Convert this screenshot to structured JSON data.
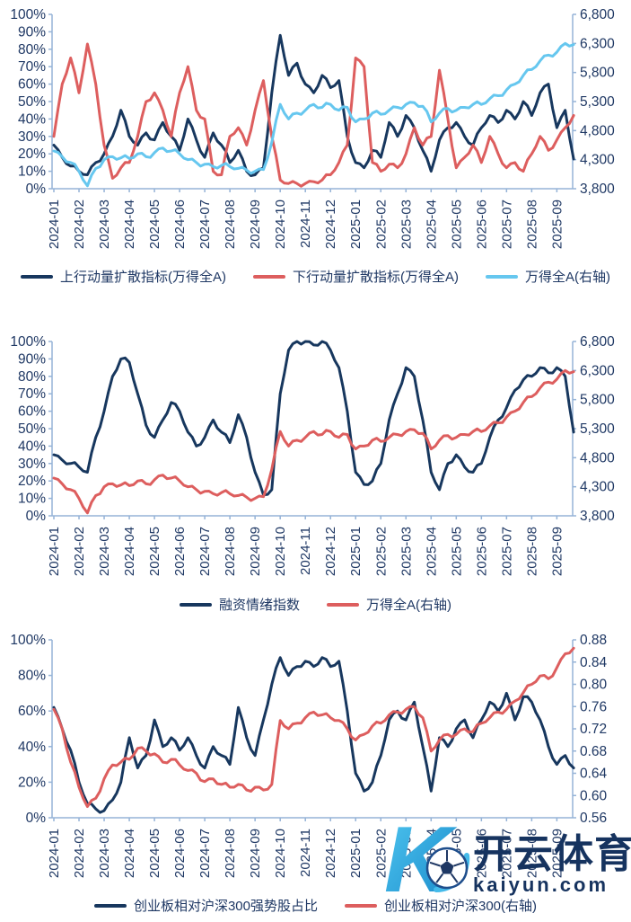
{
  "colors": {
    "navy_line": "#17375E",
    "red_line": "#DD5E5E",
    "sky_line": "#66C7EF",
    "axis_line": "#95B3D7",
    "axis_text": "#1F3864",
    "watermark_cyan": "#2FA8E0",
    "watermark_navy": "#16335F"
  },
  "watermark": {
    "logo": "kaiyun-k-soccer-logo",
    "brand_cn": "开云体育",
    "brand_url": "kaiyun.com"
  },
  "chart_data": [
    {
      "type": "line",
      "x_labels": [
        "2024-01",
        "2024-02",
        "2024-03",
        "2024-04",
        "2024-05",
        "2024-06",
        "2024-07",
        "2024-08",
        "2024-09",
        "2024-10",
        "2024-11",
        "2024-12",
        "2025-01",
        "2025-02",
        "2025-03",
        "2025-04",
        "2025-05",
        "2025-06",
        "2025-07",
        "2025-08",
        "2025-09"
      ],
      "x_label_rotation": -90,
      "grid": false,
      "legend_position": "bottom",
      "left_axis": {
        "min": 0,
        "max": 100,
        "ticks": [
          "100%",
          "90%",
          "80%",
          "70%",
          "60%",
          "50%",
          "40%",
          "30%",
          "20%",
          "10%",
          "0%"
        ]
      },
      "right_axis": {
        "min": 3800,
        "max": 6800,
        "ticks": [
          "6,800",
          "6,300",
          "5,800",
          "5,300",
          "4,800",
          "4,300",
          "3,800"
        ]
      },
      "series": [
        {
          "name": "上行动量扩散指标(万得全A)",
          "axis": "left",
          "color": "#17375E",
          "values": [
            25,
            18,
            13,
            10,
            8,
            15,
            20,
            30,
            45,
            30,
            25,
            32,
            28,
            38,
            30,
            22,
            40,
            28,
            18,
            32,
            25,
            15,
            22,
            10,
            8,
            12,
            55,
            88,
            65,
            72,
            60,
            55,
            65,
            58,
            62,
            30,
            15,
            12,
            22,
            18,
            38,
            30,
            42,
            35,
            22,
            10,
            28,
            35,
            38,
            30,
            25,
            35,
            42,
            38,
            45,
            40,
            50,
            42,
            55,
            60,
            35,
            45,
            17
          ]
        },
        {
          "name": "下行动量扩散指标(万得全A)",
          "axis": "left",
          "color": "#DD5E5E",
          "values": [
            30,
            60,
            75,
            55,
            83,
            60,
            25,
            6,
            12,
            15,
            30,
            50,
            55,
            45,
            30,
            55,
            70,
            45,
            40,
            10,
            8,
            30,
            35,
            25,
            45,
            62,
            30,
            5,
            3,
            3,
            3,
            4,
            5,
            8,
            15,
            25,
            75,
            70,
            15,
            10,
            14,
            12,
            20,
            35,
            25,
            30,
            68,
            40,
            12,
            18,
            25,
            15,
            30,
            20,
            12,
            15,
            10,
            20,
            30,
            22,
            28,
            35,
            42
          ]
        },
        {
          "name": "万得全A(右轴)",
          "axis": "right",
          "color": "#66C7EF",
          "values": [
            4450,
            4350,
            4250,
            4100,
            3850,
            4150,
            4300,
            4350,
            4330,
            4320,
            4400,
            4350,
            4420,
            4500,
            4450,
            4400,
            4300,
            4250,
            4220,
            4180,
            4200,
            4180,
            4150,
            4120,
            4100,
            4130,
            4600,
            5250,
            5000,
            5100,
            5150,
            5250,
            5200,
            5250,
            5150,
            5200,
            4950,
            5000,
            5100,
            5080,
            5150,
            5200,
            5250,
            5280,
            5220,
            4950,
            5100,
            5180,
            5150,
            5200,
            5250,
            5250,
            5350,
            5400,
            5500,
            5600,
            5750,
            5850,
            6000,
            6100,
            6150,
            6300,
            6280
          ]
        }
      ]
    },
    {
      "type": "line",
      "x_labels": [
        "2024-01",
        "2024-02",
        "2024-03",
        "2024-04",
        "2024-05",
        "2024-06",
        "2024-07",
        "2024-08",
        "2024-09",
        "2024-10",
        "2024-11",
        "2024-12",
        "2025-01",
        "2025-02",
        "2025-03",
        "2025-04",
        "2025-05",
        "2025-06",
        "2025-07",
        "2025-08",
        "2025-09"
      ],
      "x_label_rotation": -90,
      "grid": false,
      "legend_position": "bottom",
      "left_axis": {
        "min": 0,
        "max": 100,
        "ticks": [
          "100%",
          "90%",
          "80%",
          "70%",
          "60%",
          "50%",
          "40%",
          "30%",
          "20%",
          "10%",
          "0%"
        ]
      },
      "right_axis": {
        "min": 3800,
        "max": 6800,
        "ticks": [
          "6,800",
          "6,300",
          "5,800",
          "5,300",
          "4,800",
          "4,300",
          "3,800"
        ]
      },
      "series": [
        {
          "name": "融资情绪指数",
          "axis": "left",
          "color": "#17375E",
          "values": [
            35,
            32,
            30,
            28,
            25,
            45,
            60,
            80,
            90,
            88,
            70,
            52,
            45,
            55,
            65,
            60,
            48,
            40,
            45,
            55,
            48,
            42,
            58,
            45,
            25,
            12,
            15,
            70,
            95,
            100,
            100,
            98,
            100,
            95,
            85,
            60,
            25,
            18,
            20,
            30,
            55,
            70,
            85,
            80,
            55,
            25,
            15,
            30,
            35,
            28,
            25,
            30,
            45,
            55,
            62,
            72,
            78,
            80,
            85,
            82,
            85,
            80,
            48
          ]
        },
        {
          "name": "万得全A(右轴)",
          "axis": "right",
          "color": "#DD5E5E",
          "values": [
            4450,
            4350,
            4250,
            4100,
            3850,
            4150,
            4300,
            4350,
            4330,
            4320,
            4400,
            4350,
            4420,
            4500,
            4450,
            4400,
            4300,
            4250,
            4220,
            4180,
            4200,
            4180,
            4150,
            4120,
            4100,
            4130,
            4600,
            5250,
            5000,
            5100,
            5150,
            5250,
            5200,
            5250,
            5150,
            5200,
            4950,
            5000,
            5100,
            5080,
            5150,
            5200,
            5250,
            5280,
            5220,
            4950,
            5100,
            5180,
            5150,
            5200,
            5250,
            5250,
            5350,
            5400,
            5500,
            5600,
            5750,
            5850,
            6000,
            6100,
            6150,
            6300,
            6280
          ]
        }
      ]
    },
    {
      "type": "line",
      "x_labels": [
        "2024-01",
        "2024-02",
        "2024-03",
        "2024-04",
        "2024-05",
        "2024-06",
        "2024-07",
        "2024-08",
        "2024-09",
        "2024-10",
        "2024-11",
        "2024-12",
        "2025-01",
        "2025-02",
        "2025-03",
        "2025-04",
        "2025-05",
        "2025-06",
        "2025-07",
        "2025-08",
        "2025-09"
      ],
      "x_label_rotation": -90,
      "grid": false,
      "legend_position": "bottom",
      "left_axis": {
        "min": 0,
        "max": 100,
        "ticks": [
          "100%",
          "80%",
          "60%",
          "40%",
          "20%",
          "0%"
        ]
      },
      "right_axis": {
        "min": 0.56,
        "max": 0.88,
        "ticks": [
          "0.88",
          "0.84",
          "0.80",
          "0.76",
          "0.72",
          "0.68",
          "0.64",
          "0.60",
          "0.56"
        ]
      },
      "series": [
        {
          "name": "创业板相对沪深300强势股占比",
          "axis": "left",
          "color": "#17375E",
          "values": [
            62,
            50,
            38,
            20,
            8,
            5,
            4,
            10,
            20,
            45,
            28,
            35,
            55,
            40,
            45,
            38,
            45,
            35,
            28,
            40,
            35,
            30,
            62,
            45,
            35,
            55,
            75,
            90,
            80,
            85,
            88,
            85,
            90,
            85,
            88,
            60,
            25,
            15,
            20,
            35,
            55,
            60,
            55,
            65,
            40,
            15,
            45,
            40,
            50,
            55,
            45,
            55,
            65,
            60,
            70,
            55,
            68,
            65,
            55,
            40,
            30,
            35,
            28
          ]
        },
        {
          "name": "创业板相对沪深300(右轴)",
          "axis": "right",
          "color": "#DD5E5E",
          "values": [
            0.755,
            0.72,
            0.66,
            0.615,
            0.58,
            0.595,
            0.63,
            0.655,
            0.66,
            0.665,
            0.685,
            0.68,
            0.675,
            0.66,
            0.665,
            0.655,
            0.645,
            0.64,
            0.625,
            0.63,
            0.62,
            0.615,
            0.62,
            0.61,
            0.615,
            0.61,
            0.62,
            0.735,
            0.72,
            0.73,
            0.74,
            0.75,
            0.745,
            0.74,
            0.735,
            0.72,
            0.7,
            0.71,
            0.725,
            0.73,
            0.745,
            0.75,
            0.755,
            0.76,
            0.74,
            0.68,
            0.7,
            0.71,
            0.71,
            0.72,
            0.715,
            0.73,
            0.74,
            0.75,
            0.755,
            0.77,
            0.785,
            0.8,
            0.815,
            0.81,
            0.83,
            0.855,
            0.865
          ]
        }
      ]
    }
  ]
}
